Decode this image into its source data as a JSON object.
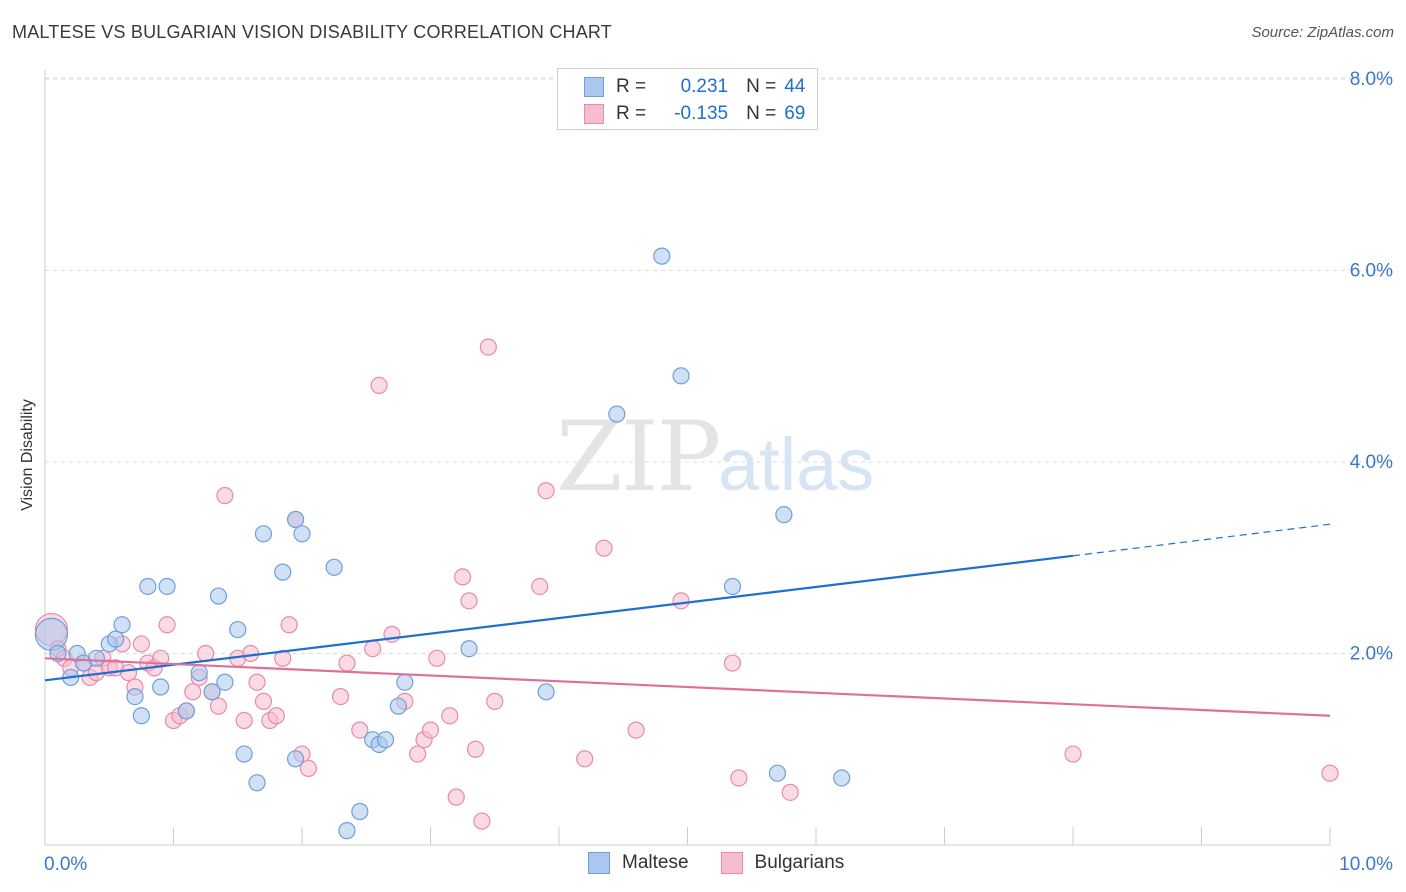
{
  "title": "MALTESE VS BULGARIAN VISION DISABILITY CORRELATION CHART",
  "source": "Source: ZipAtlas.com",
  "colors": {
    "maltese_fill": "#aac8ee",
    "maltese_stroke": "#6f9fd8",
    "maltese_line": "#1f6fd0",
    "bulgarian_fill": "#f6bcd0",
    "bulgarian_stroke": "#e88aaa",
    "bulgarian_line": "#e0709a",
    "tick_label": "#3b78c8",
    "grid": "#dddddd"
  },
  "legend": {
    "rows": [
      {
        "r_label": "R =",
        "r_value": "0.231",
        "n_label": "N =",
        "n_value": "44"
      },
      {
        "r_label": "R =",
        "r_value": "-0.135",
        "n_label": "N =",
        "n_value": "69"
      }
    ]
  },
  "watermark": {
    "zip": "ZIP",
    "atlas": "atlas"
  },
  "chart_data": {
    "type": "scatter",
    "title": "MALTESE VS BULGARIAN VISION DISABILITY CORRELATION CHART",
    "xlabel": "",
    "ylabel": "Vision Disability",
    "xlim": [
      0,
      10
    ],
    "ylim": [
      0,
      8.4
    ],
    "x_tick_labels": [
      "0.0%",
      "10.0%"
    ],
    "y_ticks": [
      2,
      4,
      6,
      8
    ],
    "y_tick_labels": [
      "2.0%",
      "4.0%",
      "6.0%",
      "8.0%"
    ],
    "grid": true,
    "legend_position": "top-center",
    "series": [
      {
        "name": "Maltese",
        "points": [
          [
            0.05,
            2.2
          ],
          [
            0.1,
            2.0
          ],
          [
            0.2,
            1.75
          ],
          [
            0.25,
            2.0
          ],
          [
            0.3,
            1.9
          ],
          [
            0.4,
            1.95
          ],
          [
            0.5,
            2.1
          ],
          [
            0.55,
            2.15
          ],
          [
            0.6,
            2.3
          ],
          [
            0.7,
            1.55
          ],
          [
            0.75,
            1.35
          ],
          [
            0.8,
            2.7
          ],
          [
            0.9,
            1.65
          ],
          [
            0.95,
            2.7
          ],
          [
            1.1,
            1.4
          ],
          [
            1.2,
            1.8
          ],
          [
            1.3,
            1.6
          ],
          [
            1.35,
            2.6
          ],
          [
            1.4,
            1.7
          ],
          [
            1.5,
            2.25
          ],
          [
            1.55,
            0.95
          ],
          [
            1.65,
            0.65
          ],
          [
            1.7,
            3.25
          ],
          [
            1.85,
            2.85
          ],
          [
            1.95,
            3.4
          ],
          [
            1.95,
            0.9
          ],
          [
            2.0,
            3.25
          ],
          [
            2.25,
            2.9
          ],
          [
            2.35,
            0.15
          ],
          [
            2.45,
            0.35
          ],
          [
            2.55,
            1.1
          ],
          [
            2.6,
            1.05
          ],
          [
            2.65,
            1.1
          ],
          [
            2.75,
            1.45
          ],
          [
            2.8,
            1.7
          ],
          [
            3.3,
            2.05
          ],
          [
            3.9,
            1.6
          ],
          [
            4.45,
            4.5
          ],
          [
            4.8,
            6.15
          ],
          [
            4.95,
            4.9
          ],
          [
            5.35,
            2.7
          ],
          [
            5.7,
            0.75
          ],
          [
            5.75,
            3.45
          ],
          [
            6.2,
            0.7
          ]
        ],
        "trend": {
          "x": [
            0,
            8
          ],
          "y": [
            1.72,
            3.02
          ],
          "dashed_extension": {
            "x": [
              8,
              10
            ],
            "y": [
              3.02,
              3.35
            ]
          }
        }
      },
      {
        "name": "Bulgarians",
        "points": [
          [
            0.05,
            2.25
          ],
          [
            0.1,
            2.05
          ],
          [
            0.15,
            1.95
          ],
          [
            0.2,
            1.85
          ],
          [
            0.3,
            1.9
          ],
          [
            0.35,
            1.75
          ],
          [
            0.4,
            1.8
          ],
          [
            0.45,
            1.95
          ],
          [
            0.5,
            1.85
          ],
          [
            0.55,
            1.85
          ],
          [
            0.6,
            2.1
          ],
          [
            0.65,
            1.8
          ],
          [
            0.7,
            1.65
          ],
          [
            0.75,
            2.1
          ],
          [
            0.8,
            1.9
          ],
          [
            0.85,
            1.85
          ],
          [
            0.9,
            1.95
          ],
          [
            0.95,
            2.3
          ],
          [
            1.0,
            1.3
          ],
          [
            1.05,
            1.35
          ],
          [
            1.1,
            1.4
          ],
          [
            1.15,
            1.6
          ],
          [
            1.2,
            1.75
          ],
          [
            1.25,
            2.0
          ],
          [
            1.3,
            1.6
          ],
          [
            1.35,
            1.45
          ],
          [
            1.4,
            3.65
          ],
          [
            1.5,
            1.95
          ],
          [
            1.55,
            1.3
          ],
          [
            1.6,
            2.0
          ],
          [
            1.65,
            1.7
          ],
          [
            1.7,
            1.5
          ],
          [
            1.75,
            1.3
          ],
          [
            1.8,
            1.35
          ],
          [
            1.85,
            1.95
          ],
          [
            1.9,
            2.3
          ],
          [
            1.95,
            3.4
          ],
          [
            2.0,
            0.95
          ],
          [
            2.05,
            0.8
          ],
          [
            2.3,
            1.55
          ],
          [
            2.35,
            1.9
          ],
          [
            2.45,
            1.2
          ],
          [
            2.55,
            2.05
          ],
          [
            2.6,
            4.8
          ],
          [
            2.7,
            2.2
          ],
          [
            2.8,
            1.5
          ],
          [
            2.9,
            0.95
          ],
          [
            2.95,
            1.1
          ],
          [
            3.05,
            1.95
          ],
          [
            3.15,
            1.35
          ],
          [
            3.2,
            0.5
          ],
          [
            3.25,
            2.8
          ],
          [
            3.3,
            2.55
          ],
          [
            3.35,
            1.0
          ],
          [
            3.4,
            0.25
          ],
          [
            3.45,
            5.2
          ],
          [
            3.5,
            1.5
          ],
          [
            3.85,
            2.7
          ],
          [
            3.9,
            3.7
          ],
          [
            4.35,
            3.1
          ],
          [
            4.6,
            1.2
          ],
          [
            4.95,
            2.55
          ],
          [
            5.35,
            1.9
          ],
          [
            5.4,
            0.7
          ],
          [
            5.8,
            0.55
          ],
          [
            8.0,
            0.95
          ],
          [
            10.0,
            0.75
          ],
          [
            4.2,
            0.9
          ],
          [
            3.0,
            1.2
          ]
        ],
        "trend": {
          "x": [
            0,
            10
          ],
          "y": [
            1.95,
            1.35
          ]
        }
      }
    ]
  }
}
